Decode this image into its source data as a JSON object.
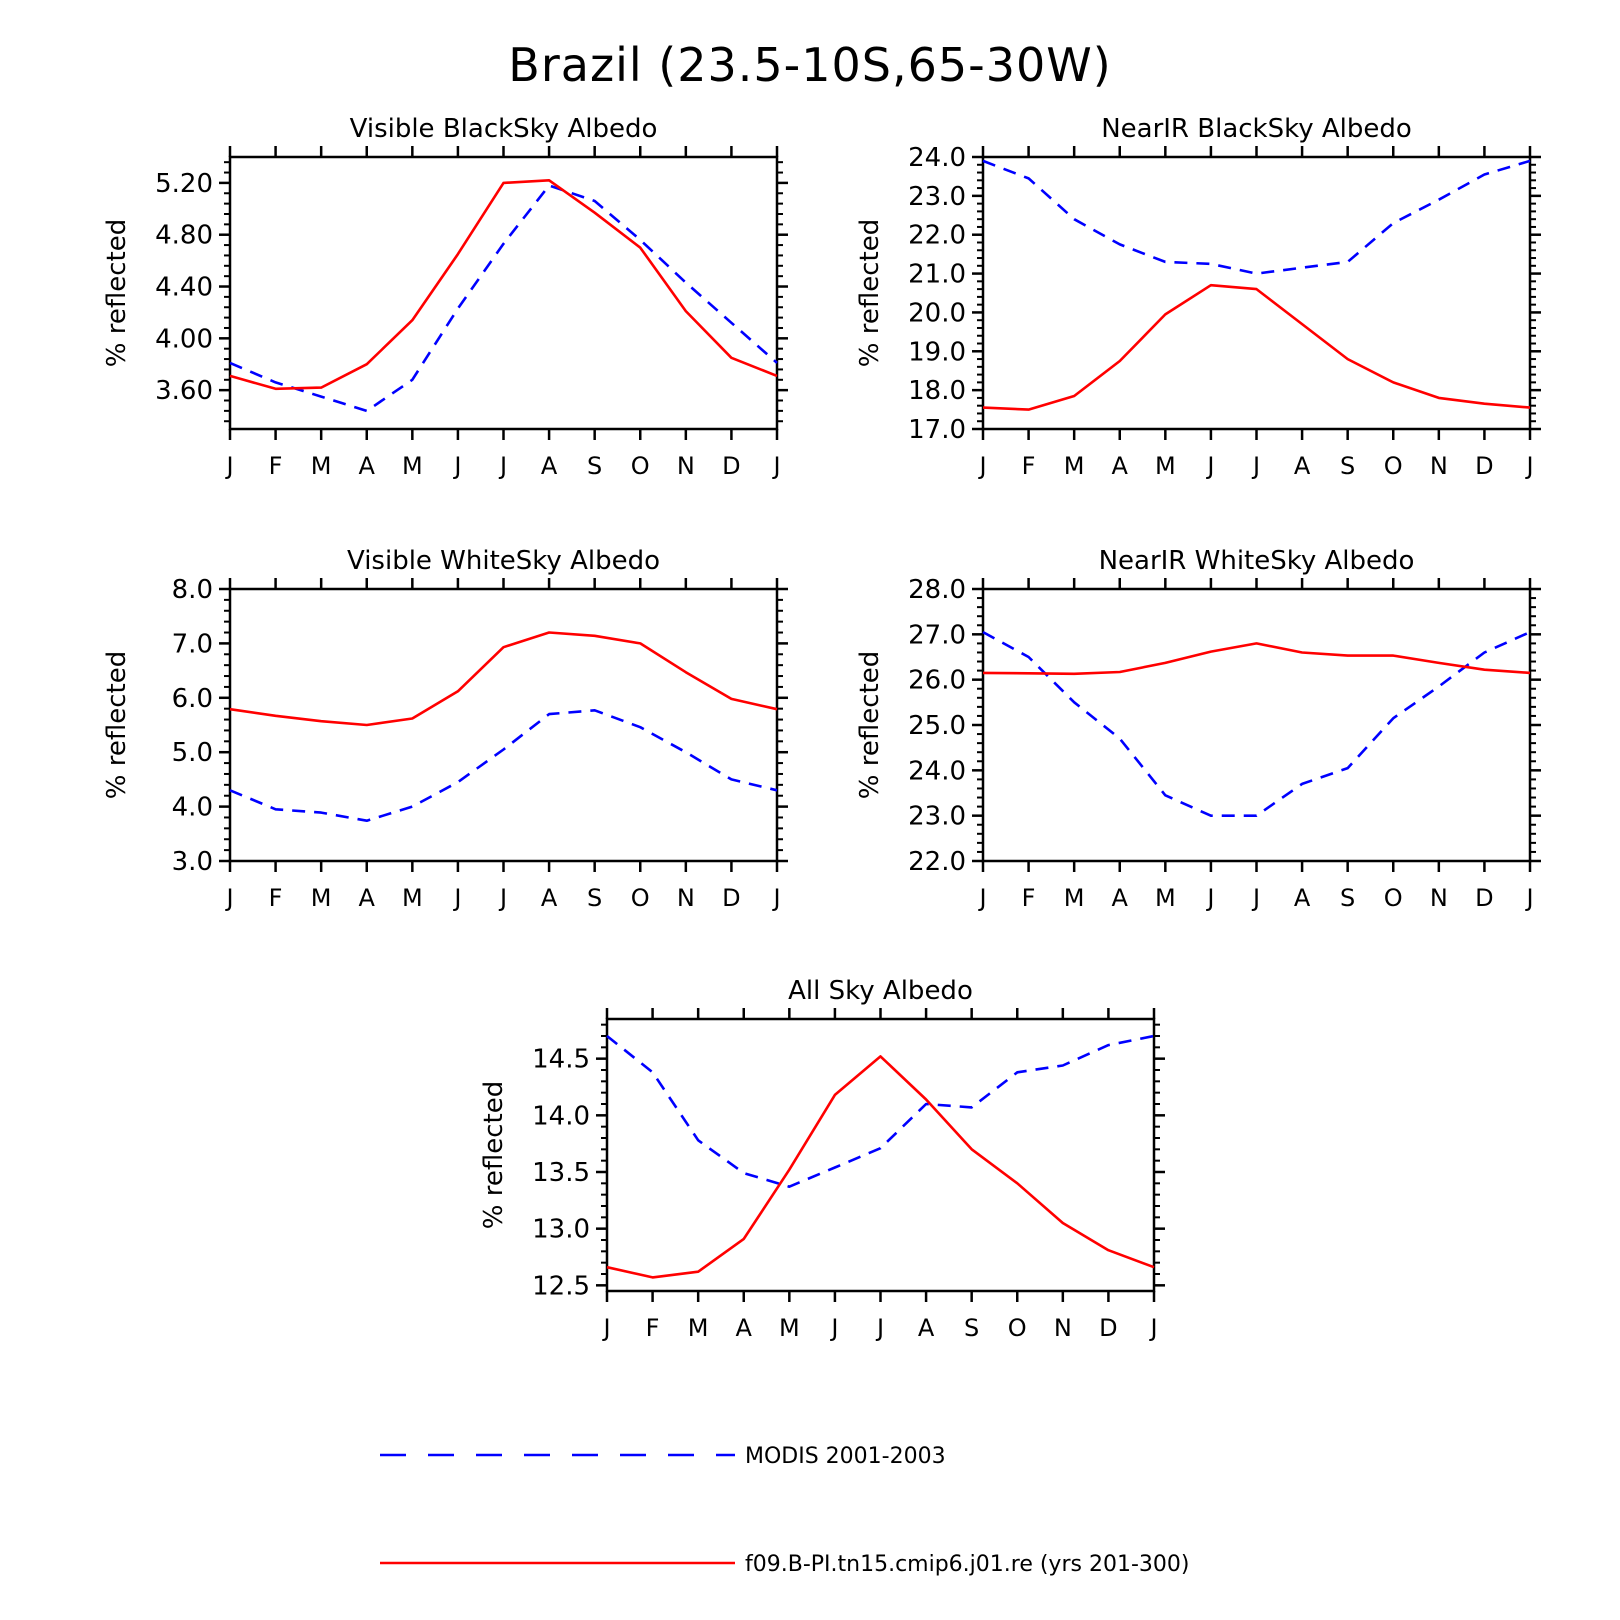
{
  "title": "Brazil (23.5-10S,65-30W)",
  "colors": {
    "modis": "#0000ff",
    "model": "#ff0000",
    "axis": "#000000"
  },
  "legend": [
    {
      "label": "MODIS 2001-2003",
      "color": "#0000ff",
      "dash": true
    },
    {
      "label": "f09.B-PI.tn15.cmip6.j01.re (yrs 201-300)",
      "color": "#ff0000",
      "dash": false
    }
  ],
  "chart_data": [
    {
      "type": "line",
      "title": "Visible BlackSky Albedo",
      "ylabel": "% reflected",
      "categories": [
        "J",
        "F",
        "M",
        "A",
        "M",
        "J",
        "J",
        "A",
        "S",
        "O",
        "N",
        "D",
        "J"
      ],
      "ylim": [
        3.3,
        5.4
      ],
      "yticks": [
        "3.60",
        "4.00",
        "4.40",
        "4.80",
        "5.20"
      ],
      "series": [
        {
          "name": "MODIS 2001-2003",
          "values": [
            3.81,
            3.66,
            3.55,
            3.44,
            3.68,
            4.23,
            4.73,
            5.18,
            5.06,
            4.76,
            4.43,
            4.12,
            3.81
          ]
        },
        {
          "name": "f09.B-PI.tn15.cmip6.j01.re (yrs 201-300)",
          "values": [
            3.71,
            3.61,
            3.62,
            3.8,
            4.14,
            4.65,
            5.2,
            5.22,
            4.97,
            4.7,
            4.21,
            3.85,
            3.71
          ]
        }
      ]
    },
    {
      "type": "line",
      "title": "NearIR BlackSky Albedo",
      "ylabel": "% reflected",
      "categories": [
        "J",
        "F",
        "M",
        "A",
        "M",
        "J",
        "J",
        "A",
        "S",
        "O",
        "N",
        "D",
        "J"
      ],
      "ylim": [
        17.0,
        24.0
      ],
      "yticks": [
        "17.0",
        "18.0",
        "19.0",
        "20.0",
        "21.0",
        "22.0",
        "23.0",
        "24.0"
      ],
      "series": [
        {
          "name": "MODIS 2001-2003",
          "values": [
            23.9,
            23.45,
            22.4,
            21.75,
            21.3,
            21.25,
            21.0,
            21.15,
            21.3,
            22.3,
            22.9,
            23.55,
            23.9
          ]
        },
        {
          "name": "f09.B-PI.tn15.cmip6.j01.re (yrs 201-300)",
          "values": [
            17.55,
            17.5,
            17.85,
            18.75,
            19.95,
            20.7,
            20.6,
            19.7,
            18.8,
            18.2,
            17.8,
            17.65,
            17.55
          ]
        }
      ]
    },
    {
      "type": "line",
      "title": "Visible WhiteSky Albedo",
      "ylabel": "% reflected",
      "categories": [
        "J",
        "F",
        "M",
        "A",
        "M",
        "J",
        "J",
        "A",
        "S",
        "O",
        "N",
        "D",
        "J"
      ],
      "ylim": [
        3.0,
        8.0
      ],
      "yticks": [
        "3.0",
        "4.0",
        "5.0",
        "6.0",
        "7.0",
        "8.0"
      ],
      "series": [
        {
          "name": "MODIS 2001-2003",
          "values": [
            4.3,
            3.95,
            3.89,
            3.74,
            4.0,
            4.45,
            5.05,
            5.7,
            5.77,
            5.46,
            5.0,
            4.5,
            4.3
          ]
        },
        {
          "name": "f09.B-PI.tn15.cmip6.j01.re (yrs 201-300)",
          "values": [
            5.79,
            5.67,
            5.57,
            5.5,
            5.62,
            6.12,
            6.93,
            7.2,
            7.14,
            7.0,
            6.47,
            5.98,
            5.79
          ]
        }
      ]
    },
    {
      "type": "line",
      "title": "NearIR WhiteSky Albedo",
      "ylabel": "% reflected",
      "categories": [
        "J",
        "F",
        "M",
        "A",
        "M",
        "J",
        "J",
        "A",
        "S",
        "O",
        "N",
        "D",
        "J"
      ],
      "ylim": [
        22.0,
        28.0
      ],
      "yticks": [
        "22.0",
        "23.0",
        "24.0",
        "25.0",
        "26.0",
        "27.0",
        "28.0"
      ],
      "series": [
        {
          "name": "MODIS 2001-2003",
          "values": [
            27.05,
            26.5,
            25.5,
            24.7,
            23.45,
            23.0,
            23.0,
            23.7,
            24.05,
            25.15,
            25.85,
            26.6,
            27.05
          ]
        },
        {
          "name": "f09.B-PI.tn15.cmip6.j01.re (yrs 201-300)",
          "values": [
            26.15,
            26.14,
            26.13,
            26.17,
            26.37,
            26.62,
            26.8,
            26.6,
            26.53,
            26.53,
            26.37,
            26.22,
            26.15
          ]
        }
      ]
    },
    {
      "type": "line",
      "title": "All Sky Albedo",
      "ylabel": "% reflected",
      "categories": [
        "J",
        "F",
        "M",
        "A",
        "M",
        "J",
        "J",
        "A",
        "S",
        "O",
        "N",
        "D",
        "J"
      ],
      "ylim": [
        12.45,
        14.85
      ],
      "yticks": [
        "12.5",
        "13.0",
        "13.5",
        "14.0",
        "14.5"
      ],
      "series": [
        {
          "name": "MODIS 2001-2003",
          "values": [
            14.7,
            14.38,
            13.78,
            13.49,
            13.37,
            13.54,
            13.71,
            14.1,
            14.07,
            14.38,
            14.44,
            14.62,
            14.7
          ]
        },
        {
          "name": "f09.B-PI.tn15.cmip6.j01.re (yrs 201-300)",
          "values": [
            12.66,
            12.57,
            12.62,
            12.91,
            13.52,
            14.18,
            14.52,
            14.14,
            13.7,
            13.4,
            13.05,
            12.81,
            12.66
          ]
        }
      ]
    }
  ]
}
